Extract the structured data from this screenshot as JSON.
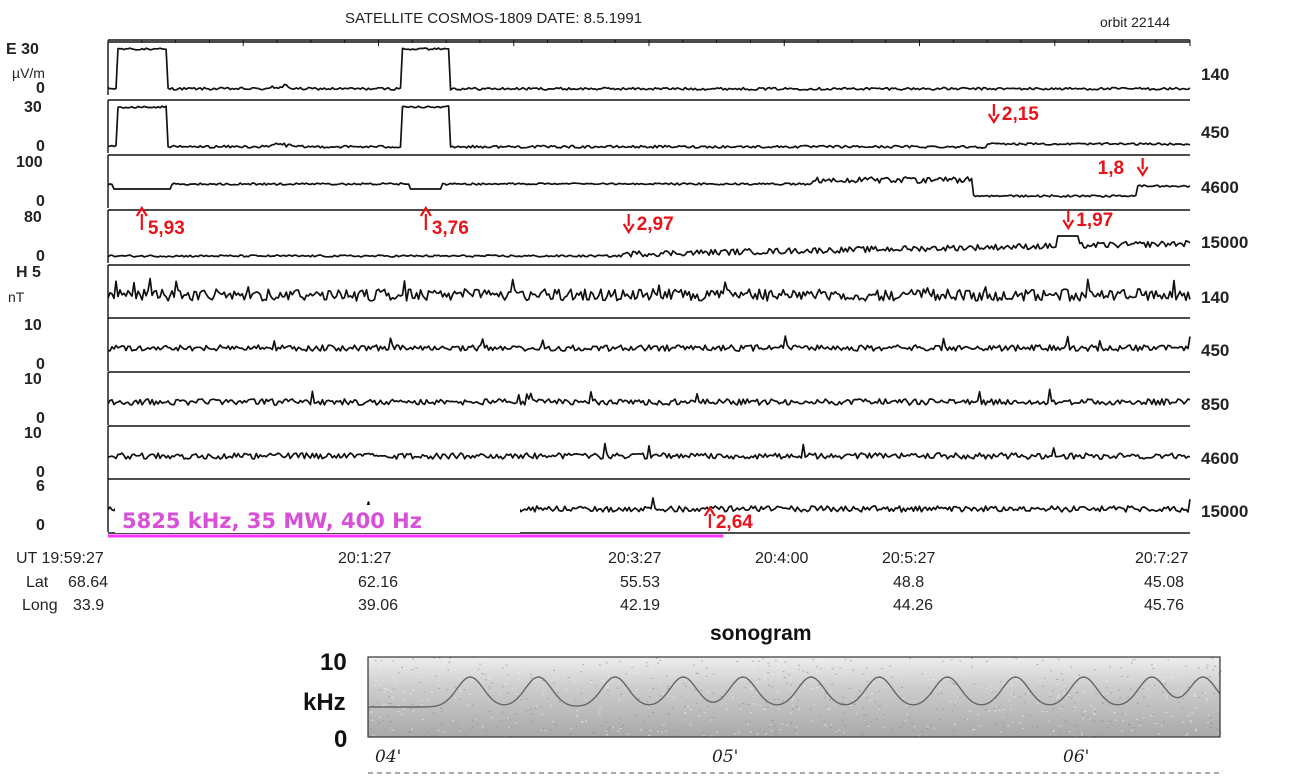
{
  "header": {
    "title": "SATELLITE  COSMOS-1809   DATE: 8.5.1991",
    "orbit": "orbit  22144"
  },
  "chart_data": {
    "type": "line",
    "x_time_labels": [
      "UT 19:59:27",
      "20:1:27",
      "20:3:27",
      "20:4:00",
      "20:5:27",
      "20:7:27"
    ],
    "x_minutes": [
      0,
      2,
      4,
      4.55,
      6,
      8
    ],
    "lat_label": "Lat",
    "long_label": "Long",
    "lat_values": [
      "68.64",
      "62.16",
      "55.53",
      "48.8",
      "45.08"
    ],
    "long_values": [
      "33.9",
      "39.06",
      "42.19",
      "44.26",
      "45.76"
    ],
    "e_unit": "µV/m",
    "h_unit": "nT",
    "panels": [
      {
        "field": "E",
        "top_label": "E 30",
        "bottom_label": "0",
        "freq": "140",
        "ylim": [
          0,
          30
        ]
      },
      {
        "field": "E",
        "top_label": "30",
        "bottom_label": "0",
        "freq": "450",
        "ylim": [
          0,
          30
        ]
      },
      {
        "field": "E",
        "top_label": "100",
        "bottom_label": "0",
        "freq": "4600",
        "ylim": [
          0,
          100
        ]
      },
      {
        "field": "E",
        "top_label": "80",
        "bottom_label": "0",
        "freq": "15000",
        "ylim": [
          0,
          80
        ]
      },
      {
        "field": "H",
        "top_label": "H 5",
        "bottom_label": "",
        "freq": "140",
        "ylim": [
          0,
          5
        ]
      },
      {
        "field": "H",
        "top_label": "10",
        "bottom_label": "0",
        "freq": "450",
        "ylim": [
          0,
          10
        ]
      },
      {
        "field": "H",
        "top_label": "10",
        "bottom_label": "0",
        "freq": "850",
        "ylim": [
          0,
          10
        ]
      },
      {
        "field": "H",
        "top_label": "10",
        "bottom_label": "0",
        "freq": "4600",
        "ylim": [
          0,
          10
        ]
      },
      {
        "field": "H",
        "top_label": "6",
        "bottom_label": "0",
        "freq": "15000",
        "ylim": [
          0,
          6
        ]
      }
    ],
    "annotations": [
      {
        "text": "5,93",
        "dir": "up",
        "panel": 3,
        "t_min": 0.25
      },
      {
        "text": "3,76",
        "dir": "up",
        "panel": 3,
        "t_min": 2.35
      },
      {
        "text": "2,97",
        "dir": "down",
        "panel": 3,
        "t_min": 3.85
      },
      {
        "text": "2,15",
        "dir": "down",
        "panel": 1,
        "t_min": 6.55
      },
      {
        "text": "1,8",
        "dir": "down",
        "panel": 2,
        "t_min": 7.65
      },
      {
        "text": "1,97",
        "dir": "down",
        "panel": 3,
        "t_min": 7.1
      },
      {
        "text": "2,64",
        "dir": "up",
        "panel": 8,
        "t_min": 4.45
      }
    ],
    "heating": {
      "label": "5825 kHz, 35 MW, 400 Hz",
      "color": "#ff33ff",
      "start_min": 0,
      "end_min": 4.55
    },
    "sonogram": {
      "title": "sonogram",
      "ymax": "10",
      "unit": "kHz",
      "ymin": "0",
      "minute_ticks": [
        "04'",
        "05'",
        "06'"
      ]
    }
  }
}
